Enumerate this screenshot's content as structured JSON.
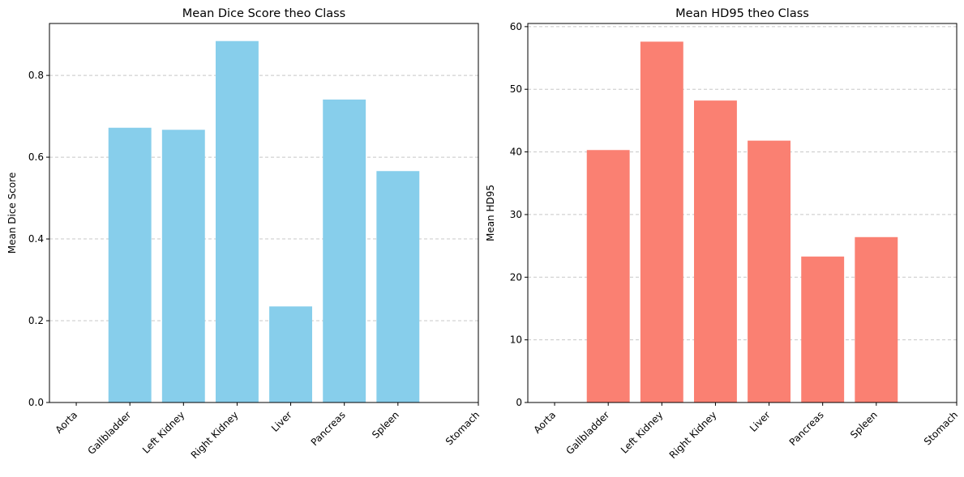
{
  "chart_data": [
    {
      "type": "bar",
      "title": "Mean Dice Score theo Class",
      "xlabel": "",
      "ylabel": "Mean Dice Score",
      "categories": [
        "Aorta",
        "Gallbladder",
        "Left Kidney",
        "Right Kidney",
        "Liver",
        "Pancreas",
        "Spleen",
        "Stomach"
      ],
      "values": [
        0,
        0.672,
        0.667,
        0.884,
        0.235,
        0.741,
        0.566,
        null
      ],
      "ylim": [
        0,
        0.927
      ],
      "yticks": [
        0.0,
        0.2,
        0.4,
        0.6,
        0.8
      ],
      "ytick_labels": [
        "0.0",
        "0.2",
        "0.4",
        "0.6",
        "0.8"
      ],
      "grid": "y dashed",
      "legend": "none",
      "color": "#87ceeb"
    },
    {
      "type": "bar",
      "title": "Mean HD95 theo Class",
      "xlabel": "",
      "ylabel": "Mean HD95",
      "categories": [
        "Aorta",
        "Gallbladder",
        "Left Kidney",
        "Right Kidney",
        "Liver",
        "Pancreas",
        "Spleen",
        "Stomach"
      ],
      "values": [
        0,
        40.3,
        57.6,
        48.2,
        41.8,
        23.3,
        26.4,
        null
      ],
      "ylim": [
        0,
        60.5
      ],
      "yticks": [
        0,
        10,
        20,
        30,
        40,
        50,
        60
      ],
      "ytick_labels": [
        "0",
        "10",
        "20",
        "30",
        "40",
        "50",
        "60"
      ],
      "grid": "y dashed",
      "legend": "none",
      "color": "#fa8072"
    }
  ]
}
